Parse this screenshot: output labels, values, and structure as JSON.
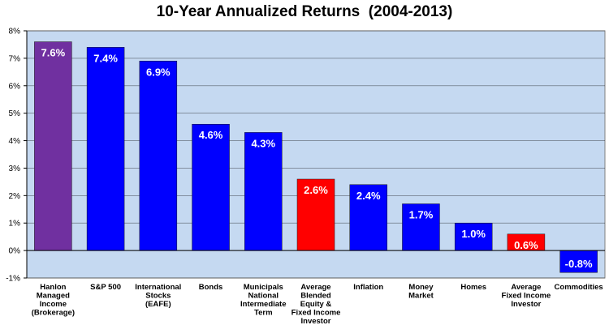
{
  "chart_data": {
    "type": "bar",
    "title": "10-Year Annualized Returns  (2004-2013)",
    "xlabel": "",
    "ylabel": "",
    "ylim": [
      -1,
      8
    ],
    "yticks": [
      "-1%",
      "0%",
      "1%",
      "2%",
      "3%",
      "4%",
      "5%",
      "6%",
      "7%",
      "8%"
    ],
    "grid": true,
    "legend": "none",
    "categories": [
      [
        "Hanlon",
        "Managed",
        "Income",
        "(Brokerage)"
      ],
      [
        "S&P 500"
      ],
      [
        "International",
        "Stocks",
        "(EAFE)"
      ],
      [
        "Bonds"
      ],
      [
        "Municipals",
        "National",
        "Intermediate",
        "Term"
      ],
      [
        "Average",
        "Blended",
        "Equity &",
        "Fixed Income",
        "Investor"
      ],
      [
        "Inflation"
      ],
      [
        "Money",
        "Market"
      ],
      [
        "Homes"
      ],
      [
        "Average",
        "Fixed Income",
        "Investor"
      ],
      [
        "Commodities"
      ]
    ],
    "values": [
      7.6,
      7.4,
      6.9,
      4.6,
      4.3,
      2.6,
      2.4,
      1.7,
      1.0,
      0.6,
      -0.8
    ],
    "data_labels": [
      "7.6%",
      "7.4%",
      "6.9%",
      "4.6%",
      "4.3%",
      "2.6%",
      "2.4%",
      "1.7%",
      "1.0%",
      "0.6%",
      "-0.8%"
    ],
    "bar_colors": [
      "#7030a0",
      "#0000ff",
      "#0000ff",
      "#0000ff",
      "#0000ff",
      "#ff0000",
      "#0000ff",
      "#0000ff",
      "#0000ff",
      "#ff0000",
      "#0000ff"
    ],
    "plot_background": "#c5d9f1"
  }
}
